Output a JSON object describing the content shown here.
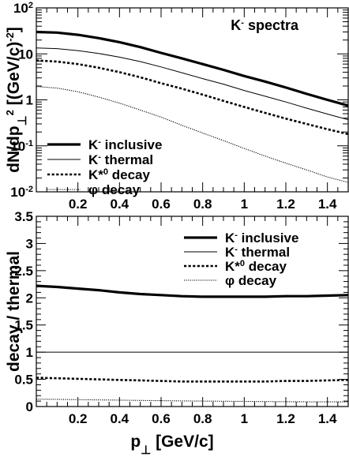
{
  "chart_data": [
    {
      "type": "line",
      "title": "K⁻ spectra",
      "xlabel": "",
      "ylabel": "dN/dp⊥² [(GeV/c)⁻²]",
      "y_scale": "log",
      "xlim": [
        0.0,
        1.5
      ],
      "ylim": [
        0.01,
        100
      ],
      "x_ticks": [
        0.2,
        0.4,
        0.6,
        0.8,
        1.0,
        1.2,
        1.4
      ],
      "x_tick_labels": [
        "0.2",
        "0.4",
        "0.6",
        "0.8",
        "1",
        "1.2",
        "1.4"
      ],
      "y_ticks": [
        0.01,
        0.1,
        1,
        10,
        100
      ],
      "y_tick_labels": [
        {
          "base": "10",
          "exp": "-2"
        },
        {
          "base": "10",
          "exp": "-1"
        },
        {
          "base": "1",
          "exp": ""
        },
        {
          "base": "10",
          "exp": ""
        },
        {
          "base": "10",
          "exp": "2"
        }
      ],
      "legend_position": "bottom-left",
      "grid": false,
      "x": [
        0.0,
        0.1,
        0.2,
        0.3,
        0.4,
        0.5,
        0.6,
        0.7,
        0.8,
        0.9,
        1.0,
        1.1,
        1.2,
        1.3,
        1.4,
        1.5
      ],
      "series": [
        {
          "name": "K⁻ inclusive",
          "style": "thick",
          "values": [
            30.0,
            29.0,
            26.0,
            22.0,
            18.0,
            14.0,
            10.5,
            8.0,
            6.0,
            4.5,
            3.3,
            2.5,
            1.85,
            1.35,
            1.0,
            0.75
          ]
        },
        {
          "name": "K⁻ thermal",
          "style": "thin",
          "values": [
            13.5,
            13.0,
            11.8,
            10.2,
            8.5,
            6.8,
            5.2,
            3.9,
            2.9,
            2.2,
            1.6,
            1.2,
            0.9,
            0.66,
            0.49,
            0.37
          ]
        },
        {
          "name": "K*⁰ decay",
          "style": "dashed",
          "values": [
            7.2,
            6.8,
            6.0,
            5.0,
            4.0,
            3.1,
            2.3,
            1.75,
            1.3,
            0.95,
            0.7,
            0.52,
            0.39,
            0.3,
            0.23,
            0.18
          ]
        },
        {
          "name": "φ decay",
          "style": "dotted",
          "values": [
            1.95,
            1.8,
            1.5,
            1.15,
            0.85,
            0.6,
            0.42,
            0.28,
            0.19,
            0.13,
            0.088,
            0.06,
            0.042,
            0.03,
            0.021,
            0.016
          ]
        }
      ]
    },
    {
      "type": "line",
      "title": "",
      "xlabel": "p⊥ [GeV/c]",
      "ylabel": "decay / thermal",
      "y_scale": "linear",
      "xlim": [
        0.0,
        1.5
      ],
      "ylim": [
        0.0,
        3.5
      ],
      "x_ticks": [
        0.2,
        0.4,
        0.6,
        0.8,
        1.0,
        1.2,
        1.4
      ],
      "x_tick_labels": [
        "0.2",
        "0.4",
        "0.6",
        "0.8",
        "1",
        "1.2",
        "1.4"
      ],
      "y_ticks": [
        0,
        0.5,
        1,
        1.5,
        2,
        2.5,
        3,
        3.5
      ],
      "y_tick_labels": [
        "0",
        "0.5",
        "1",
        "1.5",
        "2",
        "2.5",
        "3",
        "3.5"
      ],
      "legend_position": "top-right",
      "grid": false,
      "x": [
        0.0,
        0.1,
        0.2,
        0.3,
        0.4,
        0.5,
        0.6,
        0.7,
        0.8,
        0.9,
        1.0,
        1.1,
        1.2,
        1.3,
        1.4,
        1.5
      ],
      "series": [
        {
          "name": "K⁻ inclusive",
          "style": "thick",
          "values": [
            2.22,
            2.2,
            2.17,
            2.14,
            2.1,
            2.07,
            2.05,
            2.03,
            2.02,
            2.02,
            2.02,
            2.02,
            2.03,
            2.03,
            2.04,
            2.05
          ]
        },
        {
          "name": "K⁻ thermal",
          "style": "thin",
          "values": [
            1,
            1,
            1,
            1,
            1,
            1,
            1,
            1,
            1,
            1,
            1,
            1,
            1,
            1,
            1,
            1
          ]
        },
        {
          "name": "K*⁰ decay",
          "style": "dashed",
          "values": [
            0.53,
            0.52,
            0.51,
            0.5,
            0.49,
            0.48,
            0.47,
            0.46,
            0.46,
            0.46,
            0.46,
            0.46,
            0.47,
            0.47,
            0.48,
            0.49
          ]
        },
        {
          "name": "φ decay",
          "style": "dotted",
          "values": [
            0.135,
            0.132,
            0.127,
            0.122,
            0.117,
            0.112,
            0.107,
            0.103,
            0.1,
            0.097,
            0.094,
            0.091,
            0.089,
            0.087,
            0.086,
            0.085
          ]
        }
      ]
    }
  ]
}
